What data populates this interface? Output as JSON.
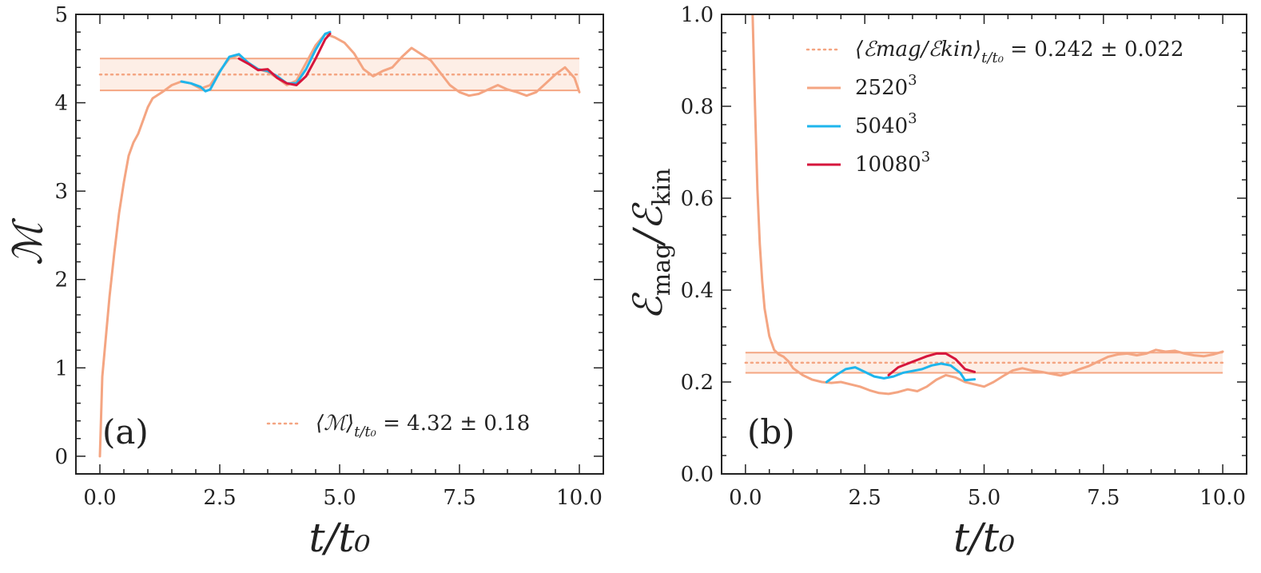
{
  "colors": {
    "run2520": "#f4a582",
    "run5040": "#1eb5ec",
    "run10080": "#d6163c",
    "band_fill": "#fdeee6",
    "axis": "#222222"
  },
  "chart_data": [
    {
      "type": "line",
      "panel_label": "(a)",
      "xlabel": "t/t₀",
      "ylabel": "ℳ",
      "xlim": [
        -0.5,
        10.5
      ],
      "ylim": [
        -0.2,
        5.0
      ],
      "xticks": [
        0.0,
        2.5,
        5.0,
        7.5,
        10.0
      ],
      "xtick_labels": [
        "0.0",
        "2.5",
        "5.0",
        "7.5",
        "10.0"
      ],
      "yticks": [
        0,
        1,
        2,
        3,
        4,
        5
      ],
      "ytick_labels": [
        "0",
        "1",
        "2",
        "3",
        "4",
        "5"
      ],
      "mean_line": {
        "value": 4.32,
        "band": [
          4.14,
          4.5
        ]
      },
      "legend": [
        {
          "label": "⟨ℳ⟩",
          "subscript": "t/t₀",
          "suffix": " = 4.32 ± 0.18",
          "style": "dotted",
          "color": "#f4a582"
        }
      ],
      "series": [
        {
          "name": "2520³",
          "color": "#f4a582",
          "x": [
            0.0,
            0.05,
            0.1,
            0.2,
            0.3,
            0.4,
            0.5,
            0.6,
            0.7,
            0.8,
            0.9,
            1.0,
            1.1,
            1.3,
            1.5,
            1.7,
            1.9,
            2.1,
            2.3,
            2.5,
            2.7,
            2.9,
            3.1,
            3.3,
            3.5,
            3.7,
            3.9,
            4.1,
            4.3,
            4.5,
            4.7,
            4.9,
            5.1,
            5.3,
            5.5,
            5.7,
            5.9,
            6.1,
            6.3,
            6.5,
            6.7,
            6.9,
            7.1,
            7.3,
            7.5,
            7.7,
            7.9,
            8.1,
            8.3,
            8.5,
            8.7,
            8.9,
            9.1,
            9.3,
            9.5,
            9.7,
            9.9,
            10.0
          ],
          "values": [
            0.0,
            0.9,
            1.2,
            1.8,
            2.3,
            2.75,
            3.1,
            3.4,
            3.55,
            3.65,
            3.8,
            3.95,
            4.05,
            4.12,
            4.2,
            4.24,
            4.22,
            4.16,
            4.2,
            4.36,
            4.5,
            4.54,
            4.45,
            4.38,
            4.35,
            4.28,
            4.2,
            4.25,
            4.45,
            4.65,
            4.78,
            4.74,
            4.68,
            4.56,
            4.38,
            4.3,
            4.36,
            4.4,
            4.52,
            4.62,
            4.55,
            4.48,
            4.34,
            4.2,
            4.12,
            4.08,
            4.1,
            4.15,
            4.2,
            4.15,
            4.12,
            4.08,
            4.12,
            4.22,
            4.32,
            4.4,
            4.28,
            4.12
          ]
        },
        {
          "name": "5040³",
          "color": "#1eb5ec",
          "x": [
            1.7,
            1.9,
            2.1,
            2.2,
            2.3,
            2.5,
            2.7,
            2.9,
            3.1,
            3.3,
            3.5,
            3.7,
            3.9,
            4.1,
            4.3,
            4.5,
            4.7,
            4.8
          ],
          "values": [
            4.24,
            4.22,
            4.18,
            4.13,
            4.15,
            4.35,
            4.52,
            4.55,
            4.45,
            4.38,
            4.36,
            4.3,
            4.22,
            4.22,
            4.38,
            4.6,
            4.78,
            4.8
          ]
        },
        {
          "name": "10080³",
          "color": "#d6163c",
          "x": [
            2.9,
            3.1,
            3.3,
            3.5,
            3.7,
            3.9,
            4.1,
            4.3,
            4.5,
            4.7,
            4.8
          ],
          "values": [
            4.5,
            4.44,
            4.37,
            4.38,
            4.28,
            4.22,
            4.2,
            4.3,
            4.5,
            4.72,
            4.78
          ]
        }
      ]
    },
    {
      "type": "line",
      "panel_label": "(b)",
      "xlabel": "t/t₀",
      "ylabel": "ℰmag/ℰkin",
      "xlim": [
        -0.5,
        10.5
      ],
      "ylim": [
        0.0,
        1.0
      ],
      "xticks": [
        0.0,
        2.5,
        5.0,
        7.5,
        10.0
      ],
      "xtick_labels": [
        "0.0",
        "2.5",
        "5.0",
        "7.5",
        "10.0"
      ],
      "yticks": [
        0.0,
        0.2,
        0.4,
        0.6,
        0.8,
        1.0
      ],
      "ytick_labels": [
        "0.0",
        "0.2",
        "0.4",
        "0.6",
        "0.8",
        "1.0"
      ],
      "mean_line": {
        "value": 0.242,
        "band": [
          0.22,
          0.264
        ]
      },
      "legend": [
        {
          "label": "⟨ℰmag/ℰkin⟩",
          "subscript": "t/t₀",
          "suffix": " = 0.242 ± 0.022",
          "style": "dotted",
          "color": "#f4a582"
        },
        {
          "label": "2520",
          "sup": "3",
          "style": "solid",
          "color": "#f4a582"
        },
        {
          "label": "5040",
          "sup": "3",
          "style": "solid",
          "color": "#1eb5ec"
        },
        {
          "label": "10080",
          "sup": "3",
          "style": "solid",
          "color": "#d6163c"
        }
      ],
      "series": [
        {
          "name": "2520³",
          "color": "#f4a582",
          "x": [
            0.15,
            0.2,
            0.25,
            0.3,
            0.35,
            0.4,
            0.5,
            0.6,
            0.7,
            0.8,
            0.9,
            1.0,
            1.2,
            1.4,
            1.6,
            1.8,
            2.0,
            2.2,
            2.4,
            2.6,
            2.8,
            3.0,
            3.2,
            3.4,
            3.6,
            3.8,
            4.0,
            4.2,
            4.4,
            4.6,
            4.8,
            5.0,
            5.2,
            5.4,
            5.6,
            5.8,
            6.0,
            6.2,
            6.4,
            6.6,
            6.8,
            7.0,
            7.2,
            7.4,
            7.6,
            7.8,
            8.0,
            8.2,
            8.4,
            8.6,
            8.8,
            9.0,
            9.2,
            9.4,
            9.6,
            9.8,
            10.0
          ],
          "values": [
            1.0,
            0.8,
            0.62,
            0.5,
            0.42,
            0.36,
            0.3,
            0.27,
            0.26,
            0.255,
            0.245,
            0.23,
            0.215,
            0.205,
            0.2,
            0.198,
            0.2,
            0.195,
            0.19,
            0.182,
            0.176,
            0.174,
            0.178,
            0.184,
            0.18,
            0.19,
            0.205,
            0.215,
            0.21,
            0.2,
            0.195,
            0.19,
            0.2,
            0.213,
            0.225,
            0.23,
            0.225,
            0.222,
            0.218,
            0.214,
            0.22,
            0.228,
            0.235,
            0.245,
            0.255,
            0.26,
            0.262,
            0.258,
            0.262,
            0.27,
            0.266,
            0.268,
            0.262,
            0.258,
            0.256,
            0.26,
            0.266
          ]
        },
        {
          "name": "5040³",
          "color": "#1eb5ec",
          "x": [
            1.7,
            1.9,
            2.1,
            2.3,
            2.5,
            2.7,
            2.9,
            3.1,
            3.3,
            3.5,
            3.7,
            3.9,
            4.1,
            4.3,
            4.5,
            4.6,
            4.8
          ],
          "values": [
            0.2,
            0.215,
            0.228,
            0.232,
            0.222,
            0.212,
            0.208,
            0.212,
            0.22,
            0.224,
            0.228,
            0.236,
            0.24,
            0.236,
            0.22,
            0.204,
            0.206
          ]
        },
        {
          "name": "10080³",
          "color": "#d6163c",
          "x": [
            3.0,
            3.2,
            3.4,
            3.6,
            3.8,
            4.0,
            4.2,
            4.4,
            4.6,
            4.8
          ],
          "values": [
            0.215,
            0.232,
            0.24,
            0.248,
            0.256,
            0.262,
            0.262,
            0.25,
            0.228,
            0.222
          ]
        }
      ]
    }
  ]
}
